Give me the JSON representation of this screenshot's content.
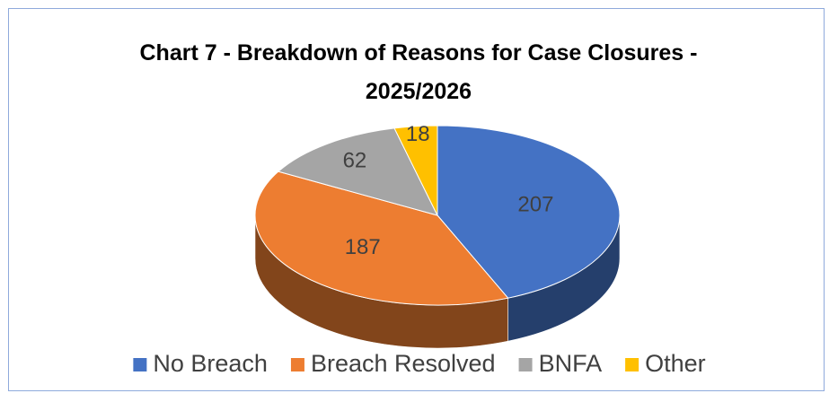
{
  "chart_data": {
    "type": "pie",
    "title": "Chart 7 - Breakdown of Reasons for Case Closures - 2025/2026",
    "categories": [
      "No Breach",
      "Breach Resolved",
      "BNFA",
      "Other"
    ],
    "values": [
      207,
      187,
      62,
      18
    ],
    "colors": [
      "#4472c4",
      "#ed7d31",
      "#a5a5a5",
      "#ffc000"
    ],
    "legend": "bottom"
  }
}
